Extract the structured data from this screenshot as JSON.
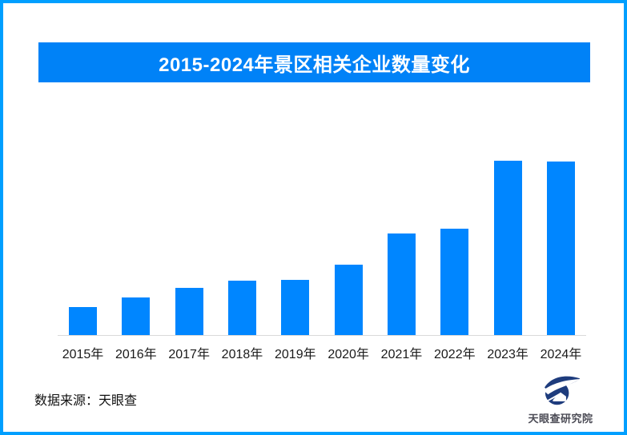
{
  "frame": {
    "border_color": "#009FFF"
  },
  "title_banner": {
    "text": "2015-2024年景区相关企业数量变化",
    "bg_color": "#0082F7",
    "text_color": "#FFFFFF"
  },
  "chart_data": {
    "type": "bar",
    "title": "2015-2024年景区相关企业数量变化",
    "categories": [
      "2015年",
      "2016年",
      "2017年",
      "2018年",
      "2019年",
      "2020年",
      "2021年",
      "2022年",
      "2023年",
      "2024年"
    ],
    "values": [
      16,
      21.5,
      27,
      31,
      31.5,
      40.5,
      58,
      61,
      100,
      99.5
    ],
    "value_note": "no y-axis shown; values estimated as relative index (2023 = 100)",
    "xlabel": "",
    "ylabel": "",
    "ylim": [
      0,
      110
    ],
    "grid": false,
    "legend": false,
    "bar_color": "#0086FF",
    "axis_color": "#D9D9D9",
    "tick_label_color": "#1A1A1A"
  },
  "footer": {
    "source_text": "数据来源：天眼查",
    "logo_text": "天眼查研究院",
    "logo_color": "#1E3C7D"
  }
}
